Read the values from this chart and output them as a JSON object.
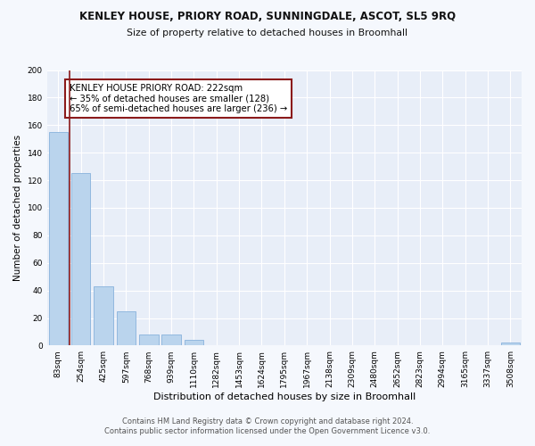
{
  "title": "KENLEY HOUSE, PRIORY ROAD, SUNNINGDALE, ASCOT, SL5 9RQ",
  "subtitle": "Size of property relative to detached houses in Broomhall",
  "xlabel": "Distribution of detached houses by size in Broomhall",
  "ylabel": "Number of detached properties",
  "bin_labels": [
    "83sqm",
    "254sqm",
    "425sqm",
    "597sqm",
    "768sqm",
    "939sqm",
    "1110sqm",
    "1282sqm",
    "1453sqm",
    "1624sqm",
    "1795sqm",
    "1967sqm",
    "2138sqm",
    "2309sqm",
    "2480sqm",
    "2652sqm",
    "2823sqm",
    "2994sqm",
    "3165sqm",
    "3337sqm",
    "3508sqm"
  ],
  "bar_heights": [
    155,
    125,
    43,
    25,
    8,
    8,
    4,
    0,
    0,
    0,
    0,
    0,
    0,
    0,
    0,
    0,
    0,
    0,
    0,
    0,
    2
  ],
  "bar_color": "#bad4ed",
  "bar_edge_color": "#92b8df",
  "property_line_color": "#8b1a1a",
  "annotation_text": "KENLEY HOUSE PRIORY ROAD: 222sqm\n← 35% of detached houses are smaller (128)\n65% of semi-detached houses are larger (236) →",
  "annotation_box_color": "#ffffff",
  "annotation_box_edge": "#8b1a1a",
  "ylim": [
    0,
    200
  ],
  "yticks": [
    0,
    20,
    40,
    60,
    80,
    100,
    120,
    140,
    160,
    180,
    200
  ],
  "footer_line1": "Contains HM Land Registry data © Crown copyright and database right 2024.",
  "footer_line2": "Contains public sector information licensed under the Open Government Licence v3.0.",
  "fig_bg_color": "#f5f8fd",
  "plot_bg_color": "#e8eef8"
}
